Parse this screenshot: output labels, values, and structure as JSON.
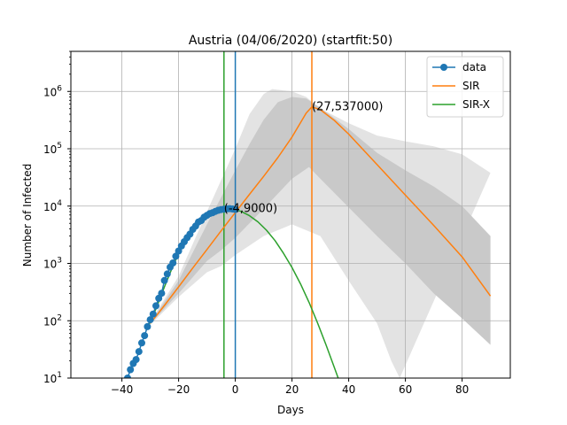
{
  "chart_data": {
    "type": "line",
    "title": "Austria (04/06/2020) (startfit:50)",
    "xlabel": "Days",
    "ylabel": "Number of Infected",
    "xlim": [
      -58,
      97
    ],
    "ylim": [
      10,
      5000000
    ],
    "yscale": "log",
    "grid": true,
    "legend_position": "top-right",
    "x_ticks": [
      -40,
      -20,
      0,
      20,
      40,
      60,
      80
    ],
    "x_tick_labels": [
      "−40",
      "−20",
      "0",
      "20",
      "40",
      "60",
      "80"
    ],
    "y_ticks": [
      {
        "value": 10,
        "base": "10",
        "exp": "1"
      },
      {
        "value": 100,
        "base": "10",
        "exp": "2"
      },
      {
        "value": 1000,
        "base": "10",
        "exp": "3"
      },
      {
        "value": 10000,
        "base": "10",
        "exp": "4"
      },
      {
        "value": 100000,
        "base": "10",
        "exp": "5"
      },
      {
        "value": 1000000,
        "base": "10",
        "exp": "6"
      }
    ],
    "colors": {
      "data": "#1f77b4",
      "sir": "#ff7f0e",
      "sirx": "#2ca02c",
      "band_outer": "#e3e3e3",
      "band_inner": "#c9c9c9",
      "grid": "#b0b0b0"
    },
    "series": [
      {
        "name": "data",
        "kind": "markers-line",
        "points": [
          [
            -38,
            10
          ],
          [
            -37,
            14
          ],
          [
            -36,
            18
          ],
          [
            -35,
            21
          ],
          [
            -34,
            29
          ],
          [
            -33,
            41
          ],
          [
            -32,
            55
          ],
          [
            -31,
            79
          ],
          [
            -30,
            104
          ],
          [
            -29,
            131
          ],
          [
            -28,
            182
          ],
          [
            -27,
            246
          ],
          [
            -26,
            302
          ],
          [
            -25,
            504
          ],
          [
            -24,
            655
          ],
          [
            -23,
            860
          ],
          [
            -22,
            1018
          ],
          [
            -21,
            1332
          ],
          [
            -20,
            1646
          ],
          [
            -19,
            2013
          ],
          [
            -18,
            2388
          ],
          [
            -17,
            2814
          ],
          [
            -16,
            3244
          ],
          [
            -15,
            3924
          ],
          [
            -14,
            4486
          ],
          [
            -13,
            5283
          ],
          [
            -12,
            5588
          ],
          [
            -11,
            6398
          ],
          [
            -10,
            6909
          ],
          [
            -9,
            7399
          ],
          [
            -8,
            7666
          ],
          [
            -7,
            8100
          ],
          [
            -6,
            8450
          ],
          [
            -5,
            8680
          ],
          [
            -4,
            8800
          ],
          [
            -3,
            8950
          ],
          [
            -2,
            9050
          ],
          [
            -1,
            8900
          ],
          [
            0,
            8700
          ]
        ]
      },
      {
        "name": "SIR",
        "kind": "line",
        "peak": {
          "x": 27,
          "y": 537000
        },
        "points": [
          [
            -30,
            90
          ],
          [
            -25,
            185
          ],
          [
            -20,
            390
          ],
          [
            -15,
            830
          ],
          [
            -10,
            1750
          ],
          [
            -5,
            3700
          ],
          [
            0,
            7700
          ],
          [
            5,
            16000
          ],
          [
            10,
            33000
          ],
          [
            15,
            70000
          ],
          [
            20,
            160000
          ],
          [
            25,
            420000
          ],
          [
            27,
            537000
          ],
          [
            30,
            480000
          ],
          [
            35,
            310000
          ],
          [
            40,
            180000
          ],
          [
            50,
            53000
          ],
          [
            60,
            15500
          ],
          [
            70,
            4600
          ],
          [
            80,
            1300
          ],
          [
            90,
            270
          ]
        ]
      },
      {
        "name": "SIR-X",
        "kind": "line",
        "peak": {
          "x": -4,
          "y": 9000
        },
        "points": [
          [
            -31,
            75
          ],
          [
            -28,
            160
          ],
          [
            -25,
            390
          ],
          [
            -22,
            900
          ],
          [
            -19,
            1900
          ],
          [
            -16,
            3500
          ],
          [
            -13,
            5400
          ],
          [
            -10,
            7100
          ],
          [
            -7,
            8300
          ],
          [
            -4,
            9000
          ],
          [
            -1,
            8900
          ],
          [
            2,
            8100
          ],
          [
            5,
            6800
          ],
          [
            8,
            5300
          ],
          [
            11,
            3800
          ],
          [
            14,
            2500
          ],
          [
            17,
            1500
          ],
          [
            20,
            850
          ],
          [
            23,
            440
          ],
          [
            26,
            210
          ],
          [
            29,
            92
          ],
          [
            32,
            38
          ],
          [
            35,
            15
          ],
          [
            37,
            8
          ]
        ]
      }
    ],
    "bands": [
      {
        "kind": "outer",
        "upper": [
          [
            -30,
            95
          ],
          [
            -20,
            600
          ],
          [
            -10,
            8000
          ],
          [
            0,
            100000
          ],
          [
            5,
            400000
          ],
          [
            10,
            900000
          ],
          [
            13,
            1100000
          ],
          [
            20,
            1000000
          ],
          [
            25,
            800000
          ],
          [
            30,
            500000
          ],
          [
            40,
            280000
          ],
          [
            50,
            170000
          ],
          [
            60,
            135000
          ],
          [
            70,
            110000
          ],
          [
            80,
            80000
          ],
          [
            90,
            38000
          ]
        ],
        "lower": [
          [
            -30,
            85
          ],
          [
            -20,
            260
          ],
          [
            -10,
            700
          ],
          [
            -5,
            900
          ],
          [
            0,
            1400
          ],
          [
            10,
            3000
          ],
          [
            20,
            4800
          ],
          [
            30,
            3000
          ],
          [
            40,
            500
          ],
          [
            50,
            90
          ],
          [
            55,
            20
          ],
          [
            58,
            10
          ]
        ]
      },
      {
        "kind": "inner",
        "upper": [
          [
            -30,
            92
          ],
          [
            -20,
            500
          ],
          [
            -10,
            4800
          ],
          [
            0,
            42000
          ],
          [
            5,
            120000
          ],
          [
            10,
            320000
          ],
          [
            15,
            650000
          ],
          [
            20,
            800000
          ],
          [
            25,
            750000
          ],
          [
            30,
            520000
          ],
          [
            40,
            220000
          ],
          [
            50,
            85000
          ],
          [
            60,
            42000
          ],
          [
            70,
            22000
          ],
          [
            80,
            10000
          ],
          [
            90,
            3000
          ]
        ],
        "lower": [
          [
            -30,
            88
          ],
          [
            -20,
            300
          ],
          [
            -10,
            1100
          ],
          [
            -5,
            1700
          ],
          [
            0,
            2800
          ],
          [
            10,
            9000
          ],
          [
            20,
            30000
          ],
          [
            26,
            48000
          ],
          [
            30,
            30000
          ],
          [
            40,
            9500
          ],
          [
            50,
            3000
          ],
          [
            60,
            1000
          ],
          [
            70,
            300
          ],
          [
            80,
            110
          ],
          [
            90,
            38
          ]
        ]
      }
    ],
    "vlines": [
      {
        "x": -4,
        "series": "SIR-X"
      },
      {
        "x": 0,
        "series": "data"
      },
      {
        "x": 27,
        "series": "SIR"
      }
    ],
    "annotations": [
      {
        "text": "(27,537000)",
        "x": 27,
        "y": 537000
      },
      {
        "text": "(-4,9000)",
        "x": -4,
        "y": 9000
      }
    ],
    "legend": [
      "data",
      "SIR",
      "SIR-X"
    ]
  }
}
